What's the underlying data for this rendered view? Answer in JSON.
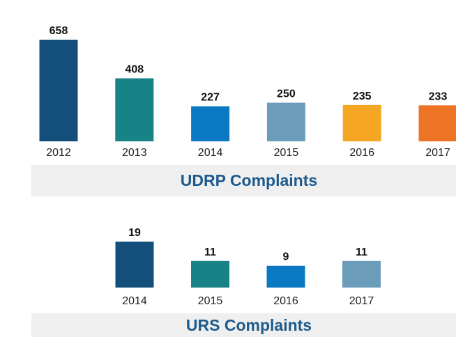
{
  "chart_data": [
    {
      "type": "bar",
      "title": "UDRP Complaints",
      "categories": [
        "2012",
        "2013",
        "2014",
        "2015",
        "2016",
        "2017"
      ],
      "values": [
        658,
        408,
        227,
        250,
        235,
        233
      ],
      "colors": [
        "#134f7a",
        "#178386",
        "#0a78c2",
        "#6b9dbb",
        "#f5a623",
        "#ec7424"
      ]
    },
    {
      "type": "bar",
      "title": "URS Complaints",
      "categories": [
        "2014",
        "2015",
        "2016",
        "2017"
      ],
      "values": [
        19,
        11,
        9,
        11
      ],
      "colors": [
        "#134f7a",
        "#178386",
        "#0a78c2",
        "#6b9dbb"
      ]
    }
  ]
}
